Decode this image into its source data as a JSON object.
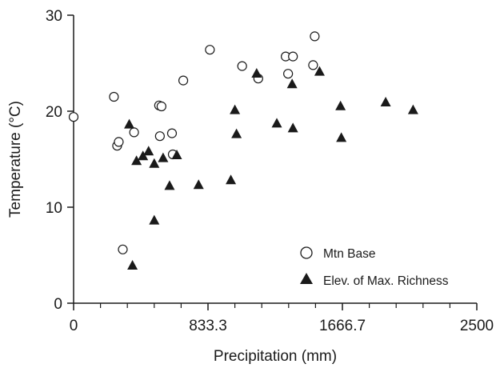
{
  "chart_data": {
    "type": "scatter",
    "title": "",
    "xlabel": "Precipitation (mm)",
    "ylabel": "Temperature (°C)",
    "xlim": [
      0,
      2500
    ],
    "ylim": [
      0,
      30
    ],
    "x_tick_labels": [
      "0",
      "833.3",
      "1666.7",
      "2500"
    ],
    "x_major_ticks": [
      0,
      833.3,
      1666.7,
      2500
    ],
    "x_minor_ticks": [
      166.7,
      333.3,
      500,
      666.7,
      1000,
      1166.7,
      1333.3,
      1500,
      1833.3,
      2000,
      2166.7,
      2333.3
    ],
    "y_tick_labels": [
      "0",
      "10",
      "20",
      "30"
    ],
    "y_major_ticks": [
      0,
      10,
      20,
      30
    ],
    "grid": false,
    "legend_position": "bottom-right",
    "series": [
      {
        "name": "Mtn Base",
        "marker": "open-circle",
        "color": "#1a1a1a",
        "points": [
          {
            "x": 0,
            "y": 19.4
          },
          {
            "x": 250,
            "y": 21.5
          },
          {
            "x": 270,
            "y": 16.4
          },
          {
            "x": 280,
            "y": 16.8
          },
          {
            "x": 305,
            "y": 5.6
          },
          {
            "x": 375,
            "y": 17.8
          },
          {
            "x": 530,
            "y": 20.6
          },
          {
            "x": 545,
            "y": 20.5
          },
          {
            "x": 535,
            "y": 17.4
          },
          {
            "x": 610,
            "y": 17.7
          },
          {
            "x": 615,
            "y": 15.5
          },
          {
            "x": 680,
            "y": 23.2
          },
          {
            "x": 845,
            "y": 26.4
          },
          {
            "x": 1045,
            "y": 24.7
          },
          {
            "x": 1145,
            "y": 23.4
          },
          {
            "x": 1315,
            "y": 25.7
          },
          {
            "x": 1360,
            "y": 25.7
          },
          {
            "x": 1330,
            "y": 23.9
          },
          {
            "x": 1485,
            "y": 24.8
          },
          {
            "x": 1495,
            "y": 27.8
          }
        ]
      },
      {
        "name": "Elev. of Max. Richness",
        "marker": "filled-triangle",
        "color": "#1a1a1a",
        "points": [
          {
            "x": 345,
            "y": 18.6
          },
          {
            "x": 365,
            "y": 3.9
          },
          {
            "x": 390,
            "y": 14.8
          },
          {
            "x": 430,
            "y": 15.3
          },
          {
            "x": 465,
            "y": 15.8
          },
          {
            "x": 500,
            "y": 8.6
          },
          {
            "x": 500,
            "y": 14.5
          },
          {
            "x": 555,
            "y": 15.1
          },
          {
            "x": 595,
            "y": 12.2
          },
          {
            "x": 640,
            "y": 15.4
          },
          {
            "x": 775,
            "y": 12.3
          },
          {
            "x": 975,
            "y": 12.8
          },
          {
            "x": 1000,
            "y": 20.1
          },
          {
            "x": 1010,
            "y": 17.6
          },
          {
            "x": 1135,
            "y": 23.9
          },
          {
            "x": 1260,
            "y": 18.7
          },
          {
            "x": 1355,
            "y": 22.8
          },
          {
            "x": 1360,
            "y": 18.2
          },
          {
            "x": 1525,
            "y": 24.1
          },
          {
            "x": 1655,
            "y": 20.5
          },
          {
            "x": 1660,
            "y": 17.2
          },
          {
            "x": 1935,
            "y": 20.9
          },
          {
            "x": 2105,
            "y": 20.1
          }
        ]
      }
    ]
  }
}
